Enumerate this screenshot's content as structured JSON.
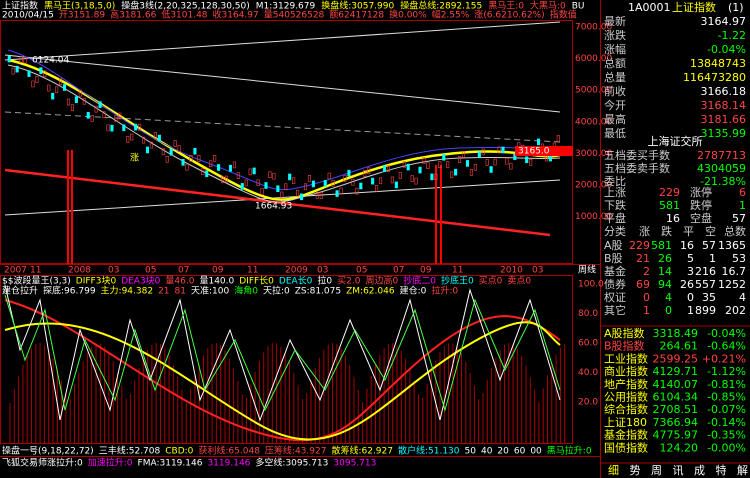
{
  "header": {
    "line1": [
      "上证指数",
      "黑马王(3,18,5,0)",
      "操盘3线(2,20,325,128,30,50)",
      "M1:3129.679",
      "换盘线:3057.990",
      "操盘总线:2892.155",
      "黑马王:0",
      "大黑马:0",
      "BU"
    ],
    "line2": [
      "2010/04/15",
      "开3151.89",
      "高3181.66",
      "低3101.48",
      "收3164.97",
      "量540526528",
      "额62417128",
      "换0.00%",
      "幅2.55%",
      "涨(6.6210.62%)",
      "指数值"
    ]
  },
  "main_axis": [
    "7000.00",
    "6000.00",
    "5000.00",
    "4000.00",
    "3000.00",
    "2000.00",
    "1000.00"
  ],
  "price_tag": "3165.0",
  "annotations": {
    "high": "6124.04",
    "low": "1664.93",
    "mark": "涨"
  },
  "x_axis": [
    "2007",
    "11",
    "2008",
    "03",
    "05",
    "07",
    "09",
    "11",
    "2009",
    "03",
    "05",
    "07",
    "09",
    "11",
    "2010",
    "03"
  ],
  "period": "周线",
  "lower_header": {
    "line1": [
      "$$波段量王(3,3)",
      "DIFF3块0",
      "DEA3块0",
      "量46.0",
      "量140.0",
      "DIFF长0",
      "DEA长0",
      "拉0",
      "买2.0",
      "周边高0",
      "抄底二0",
      "抄底王0",
      "买点0",
      "卖点0"
    ],
    "line2": [
      "建仓拉升",
      "探底:96.799",
      "主力:94.382",
      "21",
      "81",
      "天准:100",
      "海角0",
      "天拉:0",
      "ZS:81.075",
      "ZM:62.046",
      "建仓:0",
      "拉升:0"
    ]
  },
  "lower_axis": [
    "100.0",
    "80.0",
    "60.0",
    "40.0",
    "20.0"
  ],
  "footer": {
    "line1": [
      "操盘一号(9,18,22,72)",
      "三丰线:52.708",
      "CBD:0",
      "获利线:65.048",
      "压筹线:43.927",
      "散筹线:62.927",
      "散户线:51.130",
      "50",
      "40",
      "20",
      "60",
      "00",
      "黑马拉升:0"
    ],
    "line2": [
      "飞狐交易师涨拉升:0",
      "加速拉升:0",
      "FMA:3119.146",
      "3119.146",
      "多空线:3095.713",
      "3095.713"
    ]
  },
  "panel": {
    "code": "1A0001",
    "name": "上证指数",
    "page": "(1)",
    "quote": [
      [
        "最新",
        "3164.97"
      ],
      [
        "涨跌",
        "-1.22"
      ],
      [
        "涨幅",
        "-0.04%"
      ],
      [
        "总额",
        "13848743"
      ],
      [
        "总量",
        "116473280"
      ],
      [
        "前收",
        "3166.18"
      ],
      [
        "今开",
        "3168.14"
      ],
      [
        "最高",
        "3181.66"
      ],
      [
        "最低",
        "3135.99"
      ]
    ],
    "exchange": "上海证交所",
    "orders": [
      [
        "五档委买手数",
        "2787713"
      ],
      [
        "五档委卖手数",
        "4304059"
      ],
      [
        "委比",
        "-21.38%"
      ]
    ],
    "breadth": [
      [
        "上涨",
        "229",
        "涨停",
        "6"
      ],
      [
        "下跌",
        "581",
        "跌停",
        "1"
      ],
      [
        "平盘",
        "16",
        "空盘",
        "57"
      ]
    ],
    "table_header": [
      "分类",
      "涨",
      "跌",
      "平",
      "空",
      "总数"
    ],
    "table": [
      [
        "A股",
        "229",
        "581",
        "16",
        "57",
        "1365"
      ],
      [
        "B股",
        "21",
        "26",
        "5",
        "1",
        "53"
      ],
      [
        "基金",
        "2",
        "14",
        "3",
        "216",
        "16.7"
      ],
      [
        "债券",
        "69",
        "94",
        "26",
        "557",
        "1252"
      ],
      [
        "权证",
        "0",
        "4",
        "0",
        "35",
        "4"
      ],
      [
        "其它",
        "1",
        "0",
        "1",
        "899",
        "202"
      ]
    ],
    "indices": [
      [
        "A股指数",
        "3318.49",
        "-0.04%"
      ],
      [
        "B股指数",
        "264.61",
        "-0.64%"
      ],
      [
        "工业指数",
        "2599.25",
        "+0.21%"
      ],
      [
        "商业指数",
        "4129.71",
        "-1.12%"
      ],
      [
        "地产指数",
        "4140.07",
        "-0.81%"
      ],
      [
        "公用指数",
        "6104.34",
        "-0.85%"
      ],
      [
        "综合指数",
        "2708.51",
        "-0.07%"
      ],
      [
        "上证180",
        "7366.94",
        "-0.14%"
      ],
      [
        "基金指数",
        "4775.97",
        "-0.35%"
      ],
      [
        "国债指数",
        "124.20",
        "-0.00%"
      ]
    ],
    "tabs": [
      "细",
      "势",
      "周",
      "讯",
      "成",
      "特",
      "解"
    ]
  }
}
